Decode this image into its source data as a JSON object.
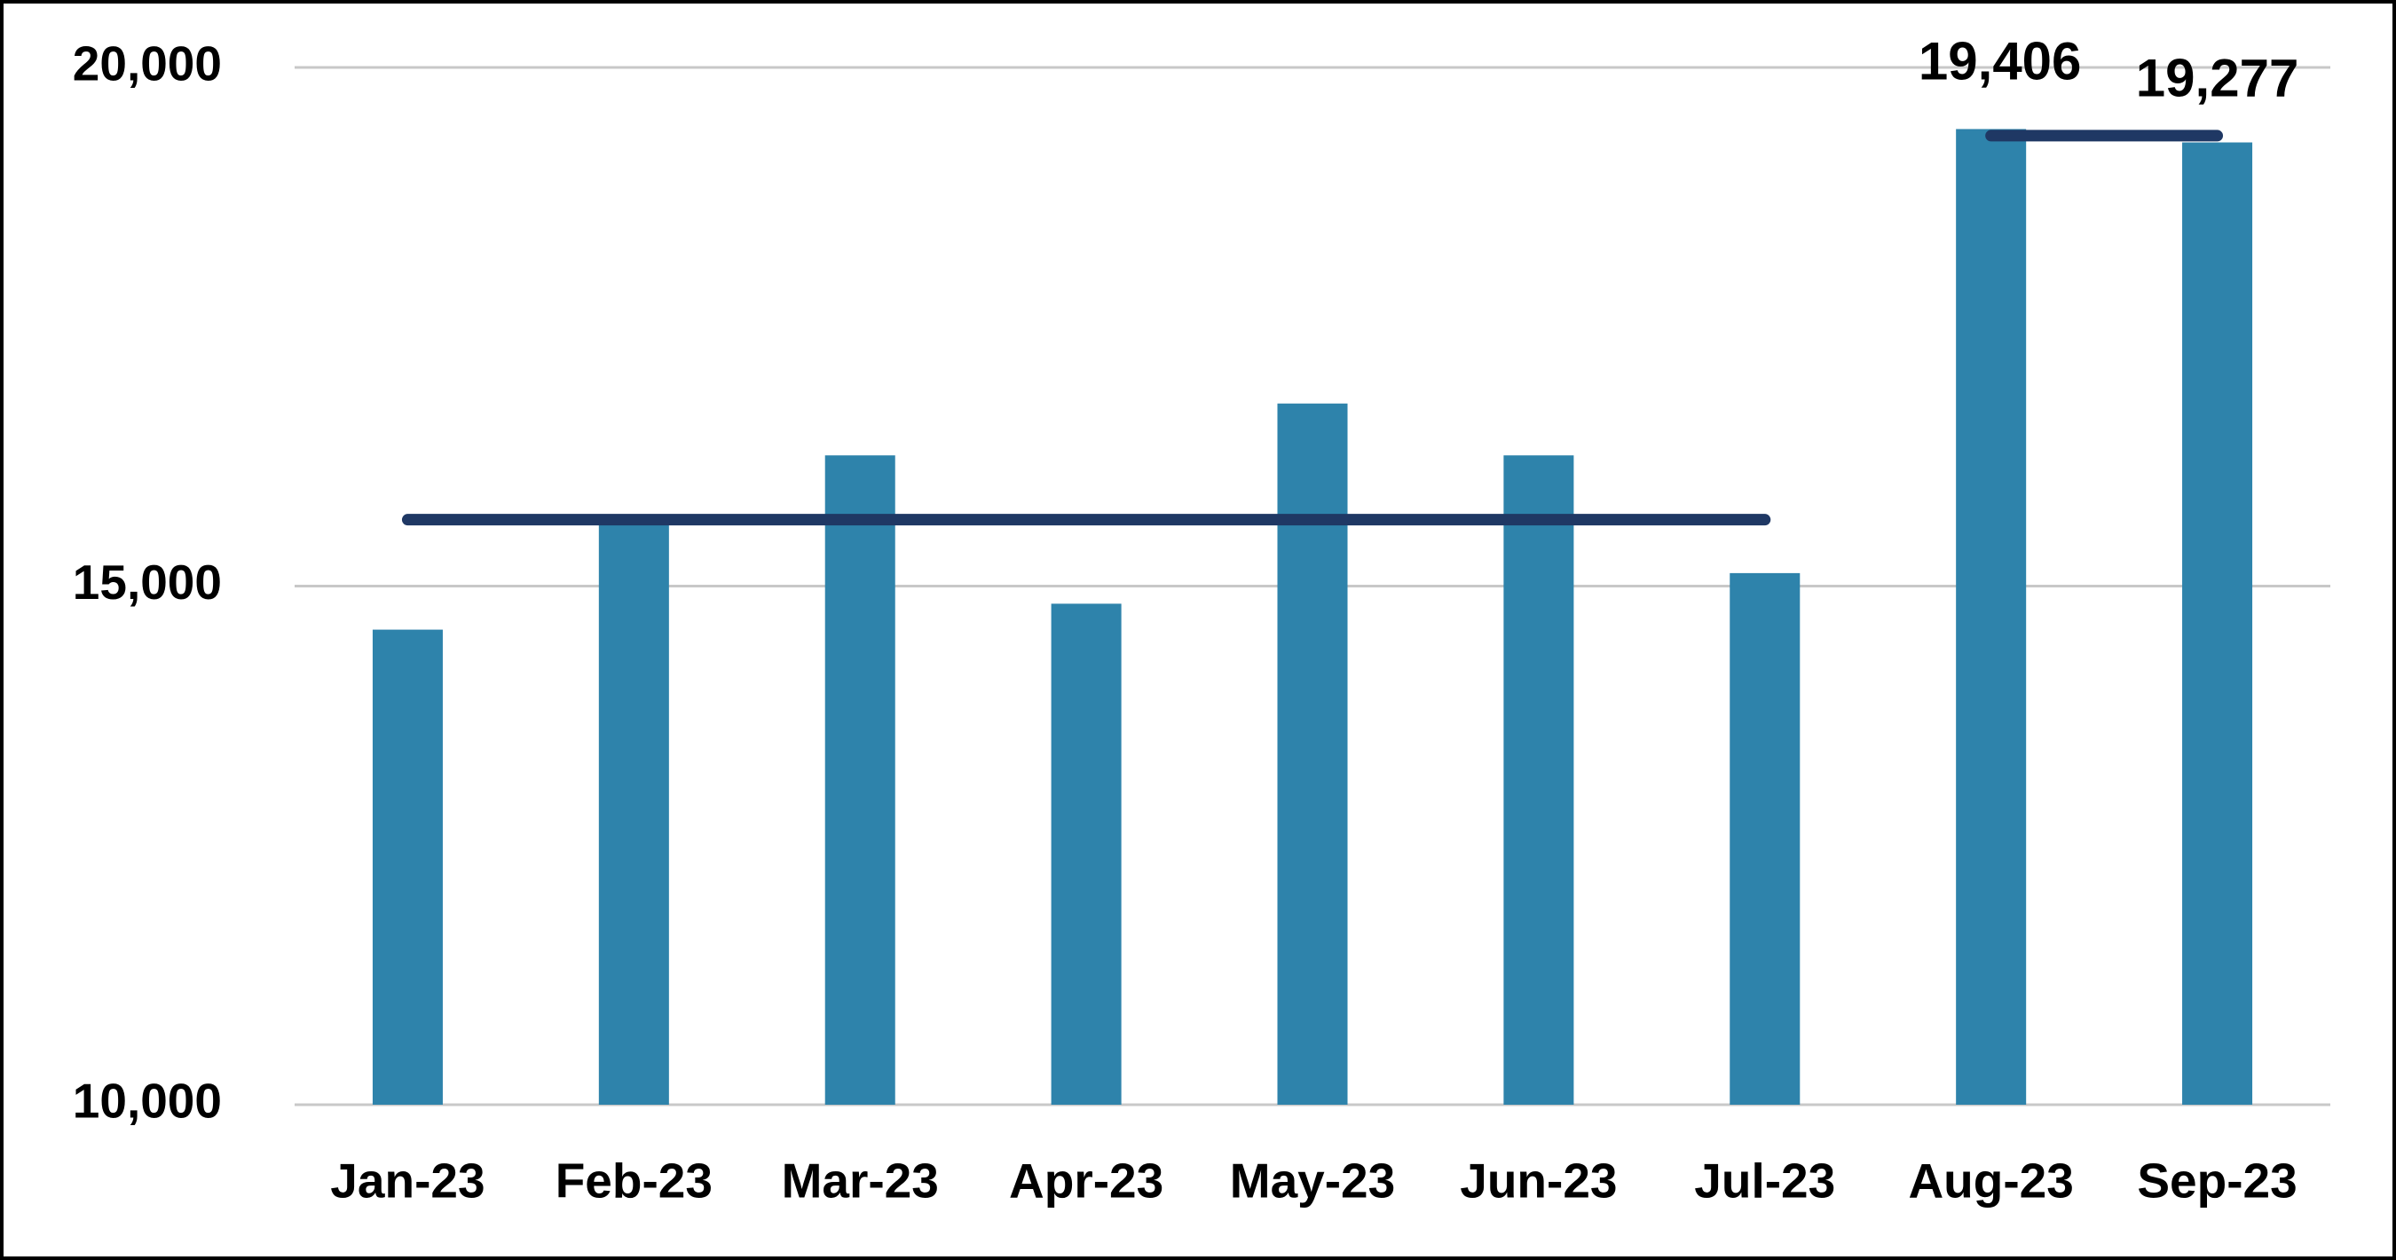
{
  "chart_data": {
    "type": "bar",
    "categories": [
      "Jan-23",
      "Feb-23",
      "Mar-23",
      "Apr-23",
      "May-23",
      "Jun-23",
      "Jul-23",
      "Aug-23",
      "Sep-23"
    ],
    "values": [
      14580,
      15650,
      16260,
      14830,
      16760,
      16260,
      15125,
      19406,
      19277
    ],
    "value_labels": [
      null,
      null,
      null,
      null,
      null,
      null,
      null,
      "19,406",
      "19,277"
    ],
    "color": "#2e83ab",
    "series": [
      {
        "type": "line",
        "color": "#1f3864",
        "values": [
          15640,
          15640,
          15640,
          15640,
          15640,
          15640,
          15640,
          null,
          null
        ]
      },
      {
        "type": "line",
        "color": "#1f3864",
        "values": [
          null,
          null,
          null,
          null,
          null,
          null,
          null,
          19342,
          19342
        ]
      }
    ],
    "ylim": [
      10000,
      20000
    ],
    "yticks": [
      {
        "value": 10000,
        "label": "10,000"
      },
      {
        "value": 15000,
        "label": "15,000"
      },
      {
        "value": 20000,
        "label": "20,000"
      }
    ],
    "grid": true
  }
}
